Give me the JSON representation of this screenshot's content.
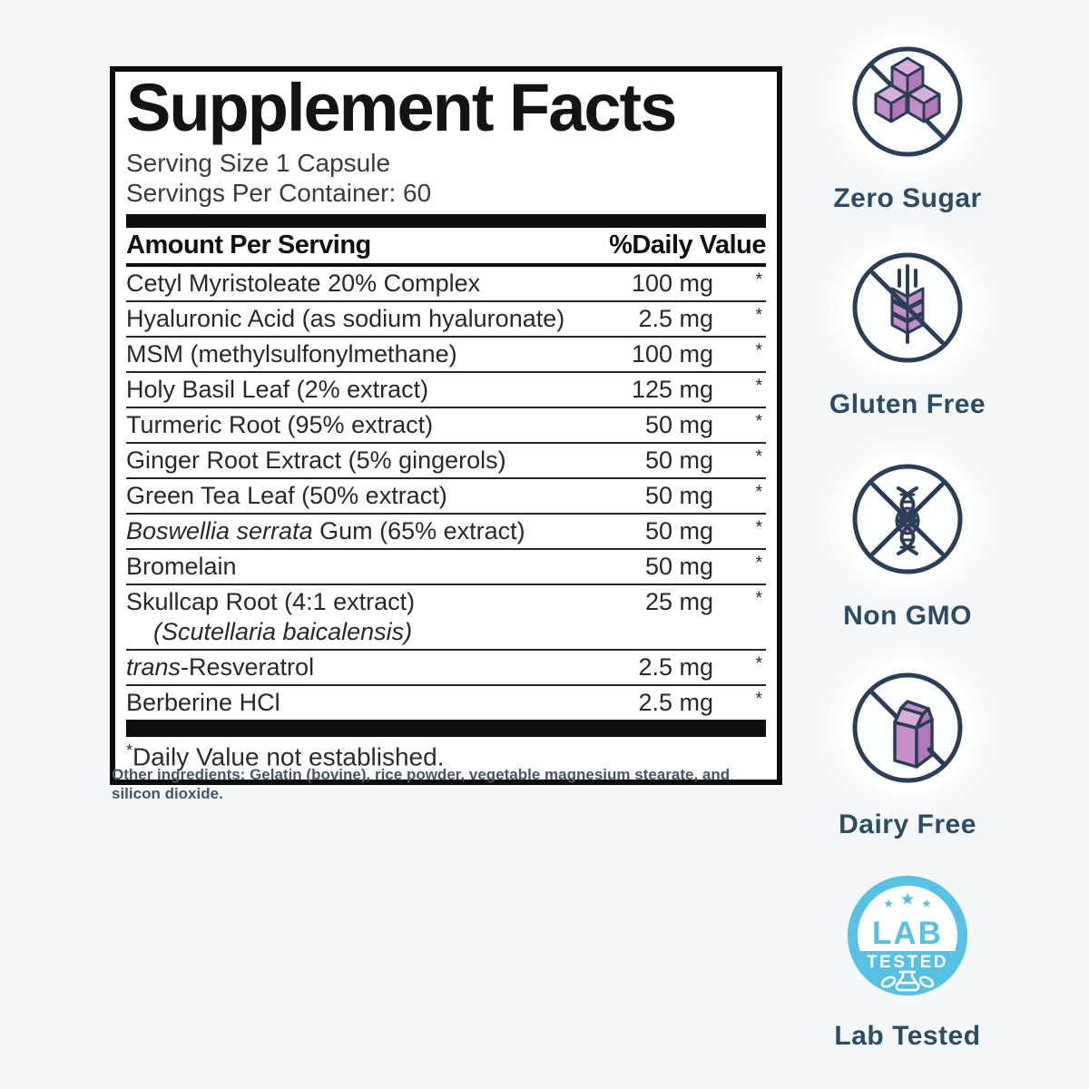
{
  "panel": {
    "title": "Supplement Facts",
    "serving_size": "Serving Size 1 Capsule",
    "servings_per_container": "Servings Per Container: 60",
    "header": {
      "amount": "Amount Per Serving",
      "daily_value": "%Daily Value"
    },
    "rows": [
      {
        "name": [
          {
            "t": "Cetyl Myristoleate 20% Complex"
          }
        ],
        "amount": "100 mg",
        "dv": "*"
      },
      {
        "name": [
          {
            "t": "Hyaluronic Acid (as sodium hyaluronate)"
          }
        ],
        "amount": "2.5 mg",
        "dv": "*"
      },
      {
        "name": [
          {
            "t": "MSM (methylsulfonylmethane)"
          }
        ],
        "amount": "100 mg",
        "dv": "*"
      },
      {
        "name": [
          {
            "t": "Holy Basil Leaf (2% extract)"
          }
        ],
        "amount": "125 mg",
        "dv": "*"
      },
      {
        "name": [
          {
            "t": "Turmeric Root (95% extract)"
          }
        ],
        "amount": "50 mg",
        "dv": "*"
      },
      {
        "name": [
          {
            "t": "Ginger Root Extract (5% gingerols)"
          }
        ],
        "amount": "50 mg",
        "dv": "*"
      },
      {
        "name": [
          {
            "t": "Green Tea Leaf (50% extract)"
          }
        ],
        "amount": "50 mg",
        "dv": "*"
      },
      {
        "name": [
          {
            "t": "Boswellia serrata",
            "i": true
          },
          {
            "t": " Gum (65% extract)"
          }
        ],
        "amount": "50 mg",
        "dv": "*"
      },
      {
        "name": [
          {
            "t": "Bromelain"
          }
        ],
        "amount": "50 mg",
        "dv": "*"
      },
      {
        "name": [
          {
            "t": "Skullcap Root (4:1 extract)"
          }
        ],
        "sub": [
          {
            "t": "(Scutellaria baicalensis)",
            "i": true
          }
        ],
        "amount": "25 mg",
        "dv": "*"
      },
      {
        "name": [
          {
            "t": "trans",
            "i": true
          },
          {
            "t": "-Resveratrol"
          }
        ],
        "amount": "2.5 mg",
        "dv": "*"
      },
      {
        "name": [
          {
            "t": "Berberine HCl"
          }
        ],
        "amount": "2.5 mg",
        "dv": "*"
      }
    ],
    "footnote_symbol": "*",
    "footnote_text": "Daily Value not established."
  },
  "other_ingredients": "Other ingredients: Gelatin (bovine), rice powder, vegetable magnesium stearate, and silicon dioxide.",
  "badges": [
    {
      "label": "Zero Sugar",
      "icon": "sugar-cubes-icon"
    },
    {
      "label": "Gluten Free",
      "icon": "wheat-icon"
    },
    {
      "label": "Non GMO",
      "icon": "dna-icon"
    },
    {
      "label": "Dairy Free",
      "icon": "milk-carton-icon"
    },
    {
      "label": "Lab Tested",
      "icon": "lab-tested-seal-icon",
      "seal_top": "LAB",
      "seal_band": "TESTED"
    }
  ],
  "colors": {
    "background": "#f5f8fb",
    "panel_border": "#0d0d0d",
    "badge_outline_navy": "#2a3e55",
    "icon_purple": "#c48fc6",
    "icon_purple_light": "#d9aed9",
    "icon_purple_dark": "#b279b8",
    "badge_label_text": "#2b4c66",
    "seal_blue": "#57c0e5"
  }
}
